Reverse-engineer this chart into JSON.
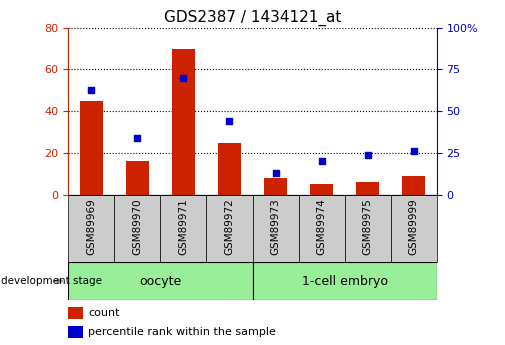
{
  "title": "GDS2387 / 1434121_at",
  "categories": [
    "GSM89969",
    "GSM89970",
    "GSM89971",
    "GSM89972",
    "GSM89973",
    "GSM89974",
    "GSM89975",
    "GSM89999"
  ],
  "count_values": [
    45,
    16,
    70,
    25,
    8,
    5,
    6,
    9
  ],
  "percentile_values": [
    63,
    34,
    70,
    44,
    13,
    20,
    24,
    26
  ],
  "left_ylim": [
    0,
    80
  ],
  "right_ylim": [
    0,
    100
  ],
  "left_yticks": [
    0,
    20,
    40,
    60,
    80
  ],
  "right_yticks": [
    0,
    25,
    50,
    75,
    100
  ],
  "right_yticklabels": [
    "0",
    "25",
    "50",
    "75",
    "100%"
  ],
  "bar_color": "#cc2200",
  "scatter_color": "#0000cc",
  "grid_color": "#000000",
  "oocyte_label": "oocyte",
  "embryo_label": "1-cell embryo",
  "group_bg_color": "#99ee99",
  "xtick_bg_color": "#cccccc",
  "stage_label": "development stage",
  "legend_count": "count",
  "legend_percentile": "percentile rank within the sample",
  "bar_width": 0.5,
  "scatter_size": 25,
  "title_fontsize": 11,
  "tick_fontsize": 8,
  "left_axis_color": "#cc2200",
  "right_axis_color": "#0000cc",
  "n_oocyte": 4,
  "n_embryo": 4
}
